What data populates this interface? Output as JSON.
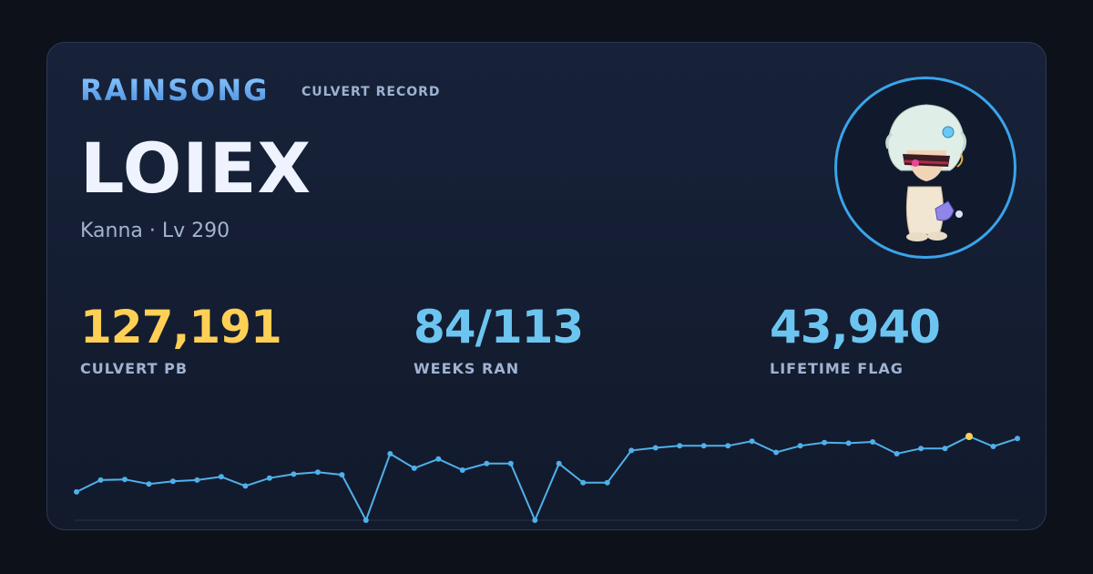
{
  "header": {
    "brand": "RAINSONG",
    "record_label": "CULVERT RECORD"
  },
  "player": {
    "name": "LOIEX",
    "subline": "Kanna · Lv 290"
  },
  "stats": {
    "pb": {
      "value": "127,191",
      "label": "CULVERT PB"
    },
    "weeks": {
      "value": "84/113",
      "label": "WEEKS RAN"
    },
    "flag": {
      "value": "43,940",
      "label": "LIFETIME FLAG"
    }
  },
  "colors": {
    "accent": "#6cc5f0",
    "gold": "#ffd055",
    "line": "#4fb0ea"
  },
  "chart_data": {
    "type": "line",
    "title": "",
    "xlabel": "",
    "ylabel": "",
    "grid": false,
    "ylim": [
      0,
      130000
    ],
    "series": [
      {
        "values": [
          43000,
          61000,
          62000,
          55000,
          59000,
          61000,
          66000,
          52000,
          64000,
          70000,
          73000,
          69000,
          0,
          101000,
          79000,
          93000,
          76000,
          86000,
          86000,
          0,
          86000,
          57000,
          57000,
          106000,
          110000,
          113000,
          113000,
          113000,
          120000,
          103000,
          113000,
          118000,
          117000,
          119000,
          101000,
          109000,
          109000,
          127191,
          112000,
          124000
        ],
        "highlight_index": 37
      }
    ]
  }
}
